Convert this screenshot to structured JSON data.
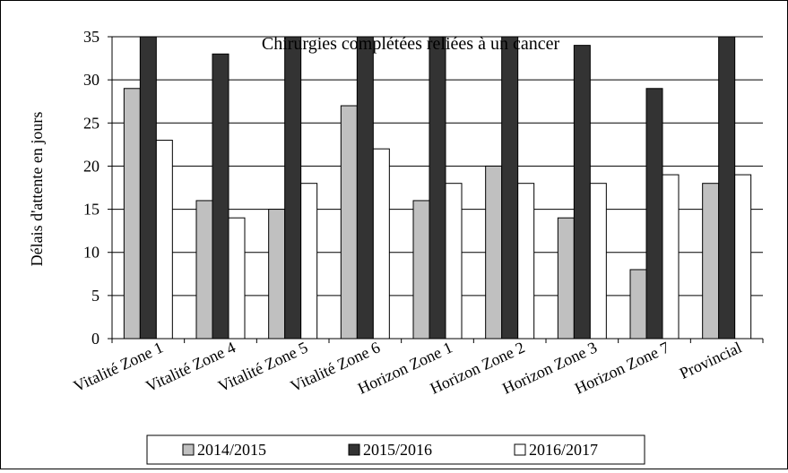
{
  "chart_data": {
    "type": "bar",
    "title": "Chirurgies complétées reliées à un cancer",
    "ylabel": "Délais d'attente en jours",
    "xlabel": "",
    "ylim": [
      0,
      35
    ],
    "yticks": [
      0,
      5,
      10,
      15,
      20,
      25,
      30,
      35
    ],
    "grid": true,
    "legend_position": "bottom",
    "categories": [
      "Vitalité Zone 1",
      "Vitalité Zone 4",
      "Vitalité Zone 5",
      "Vitalité Zone 6",
      "Horizon Zone 1",
      "Horizon Zone 2",
      "Horizon Zone 3",
      "Horizon Zone 7",
      "Provincial"
    ],
    "series": [
      {
        "name": "2014/2015",
        "color": "#c0c0c0",
        "values": [
          29,
          16,
          15,
          27,
          16,
          20,
          14,
          8,
          18
        ]
      },
      {
        "name": "2015/2016",
        "color": "#333333",
        "values": [
          35,
          33,
          35,
          35,
          35,
          35,
          34,
          29,
          35
        ]
      },
      {
        "name": "2016/2017",
        "color": "#ffffff",
        "values": [
          23,
          14,
          18,
          22,
          18,
          18,
          18,
          19,
          19
        ]
      }
    ]
  }
}
